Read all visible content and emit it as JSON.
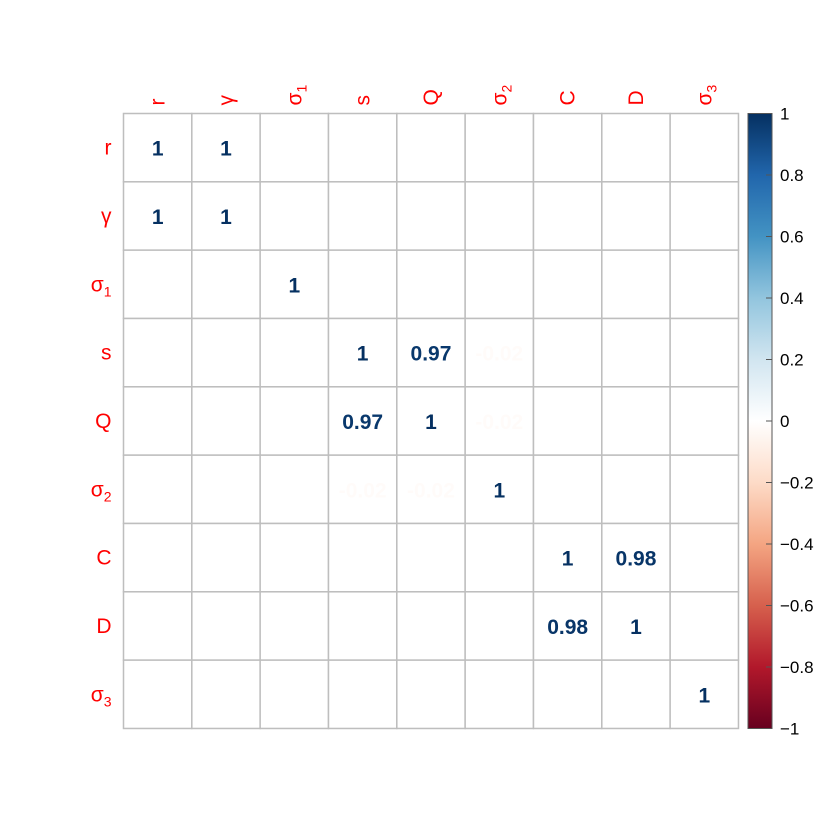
{
  "chart_data": {
    "type": "heatmap",
    "variables": [
      {
        "base": "r",
        "sub": ""
      },
      {
        "base": "γ",
        "sub": ""
      },
      {
        "base": "σ",
        "sub": "1"
      },
      {
        "base": "s",
        "sub": ""
      },
      {
        "base": "Q",
        "sub": ""
      },
      {
        "base": "σ",
        "sub": "2"
      },
      {
        "base": "C",
        "sub": ""
      },
      {
        "base": "D",
        "sub": ""
      },
      {
        "base": "σ",
        "sub": "3"
      }
    ],
    "cells": [
      {
        "row": 0,
        "col": 0,
        "value": 1,
        "label": "1"
      },
      {
        "row": 0,
        "col": 1,
        "value": 1,
        "label": "1"
      },
      {
        "row": 1,
        "col": 0,
        "value": 1,
        "label": "1"
      },
      {
        "row": 1,
        "col": 1,
        "value": 1,
        "label": "1"
      },
      {
        "row": 2,
        "col": 2,
        "value": 1,
        "label": "1"
      },
      {
        "row": 3,
        "col": 3,
        "value": 1,
        "label": "1"
      },
      {
        "row": 3,
        "col": 4,
        "value": 0.97,
        "label": "0.97"
      },
      {
        "row": 3,
        "col": 5,
        "value": -0.02,
        "label": "-0.02"
      },
      {
        "row": 4,
        "col": 3,
        "value": 0.97,
        "label": "0.97"
      },
      {
        "row": 4,
        "col": 4,
        "value": 1,
        "label": "1"
      },
      {
        "row": 4,
        "col": 5,
        "value": -0.02,
        "label": "-0.02"
      },
      {
        "row": 5,
        "col": 3,
        "value": -0.02,
        "label": "-0.02"
      },
      {
        "row": 5,
        "col": 4,
        "value": -0.02,
        "label": "-0.02"
      },
      {
        "row": 5,
        "col": 5,
        "value": 1,
        "label": "1"
      },
      {
        "row": 6,
        "col": 6,
        "value": 1,
        "label": "1"
      },
      {
        "row": 6,
        "col": 7,
        "value": 0.98,
        "label": "0.98"
      },
      {
        "row": 7,
        "col": 6,
        "value": 0.98,
        "label": "0.98"
      },
      {
        "row": 7,
        "col": 7,
        "value": 1,
        "label": "1"
      },
      {
        "row": 8,
        "col": 8,
        "value": 1,
        "label": "1"
      }
    ],
    "colorbar": {
      "range": [
        -1,
        1
      ],
      "ticks": [
        "-1",
        "-0.8",
        "-0.6",
        "-0.4",
        "-0.2",
        "0",
        "0.2",
        "0.4",
        "0.6",
        "0.8",
        "1"
      ],
      "tick_values": [
        -1,
        -0.8,
        -0.6,
        -0.4,
        -0.2,
        0,
        0.2,
        0.4,
        0.6,
        0.8,
        1
      ],
      "palette": [
        "#67001F",
        "#B2182B",
        "#D6604D",
        "#F4A582",
        "#FDDBC7",
        "#FFFFFF",
        "#D1E5F0",
        "#92C5DE",
        "#4393C3",
        "#2166AC",
        "#053061"
      ]
    },
    "label_color": "#FF0000",
    "grid_color": "#BEBEBE",
    "grid": true,
    "legend_position": "right"
  }
}
